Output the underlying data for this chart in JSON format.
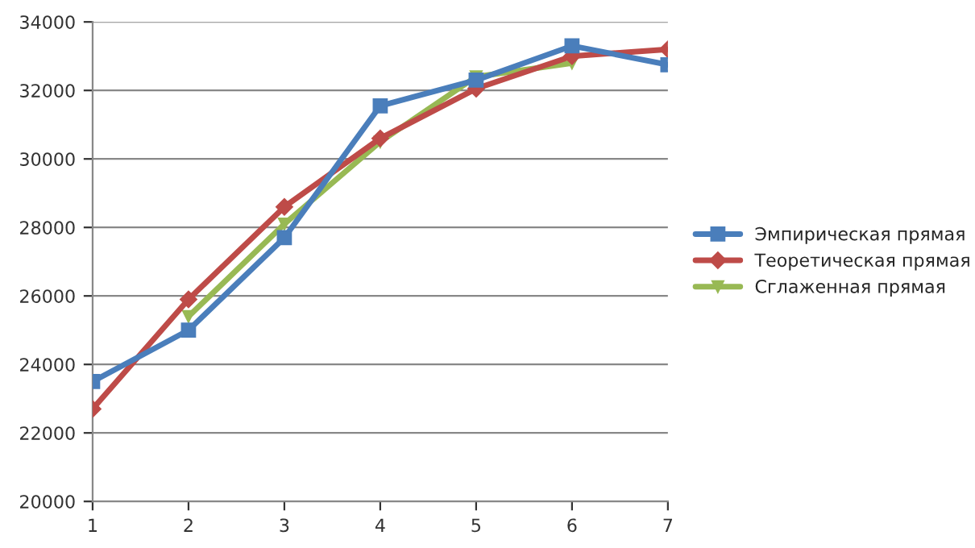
{
  "chart_data": {
    "type": "line",
    "x": [
      1,
      2,
      3,
      4,
      5,
      6,
      7
    ],
    "series": [
      {
        "name": "Эмпирическая прямая",
        "color": "#4a7ebb",
        "marker": "square",
        "values": [
          23500,
          25000,
          27700,
          31550,
          32300,
          33300,
          32750
        ]
      },
      {
        "name": "Теоретическая прямая",
        "color": "#be4b48",
        "marker": "diamond",
        "values": [
          22700,
          25900,
          28600,
          30600,
          32050,
          33000,
          33200
        ]
      },
      {
        "name": "Сглаженная прямая",
        "color": "#98b954",
        "marker": "triangle",
        "x": [
          2,
          3,
          4,
          5,
          6
        ],
        "values": [
          25400,
          28100,
          30500,
          32400,
          32800
        ]
      }
    ],
    "xlim": [
      1,
      7
    ],
    "xticks": [
      1,
      2,
      3,
      4,
      5,
      6,
      7
    ],
    "ylim": [
      20000,
      34000
    ],
    "yticks": [
      20000,
      22000,
      24000,
      26000,
      28000,
      30000,
      32000,
      34000
    ],
    "grid": "y",
    "legend": "right",
    "line_style": "solid"
  }
}
